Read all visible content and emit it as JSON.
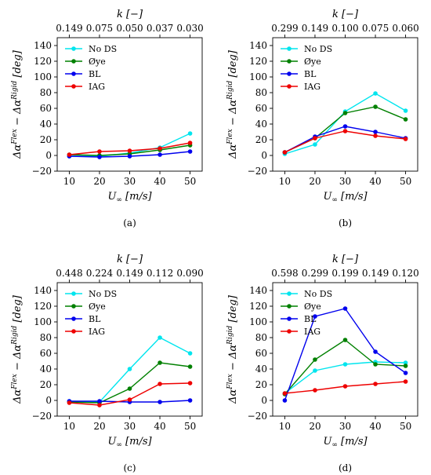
{
  "figure": {
    "series_colors": [
      "#00e5ee",
      "#008000",
      "#0000ee",
      "#ee0000"
    ],
    "x_label": "U∞ [m/s]",
    "y_label": "Δα^Flex − Δα^Rigid [deg]",
    "top_label": "k [−]"
  },
  "chart_data": [
    {
      "type": "line",
      "caption": "(a)",
      "x": [
        10,
        20,
        30,
        40,
        50
      ],
      "xlim": [
        6,
        54
      ],
      "ylim": [
        -20,
        150
      ],
      "yticks": [
        -20,
        0,
        20,
        40,
        60,
        80,
        100,
        120,
        140
      ],
      "top_ticks": [
        "0.149",
        "0.075",
        "0.050",
        "0.037",
        "0.030"
      ],
      "legend": "upper-left",
      "series": [
        {
          "name": "No DS",
          "values": [
            -1,
            -1,
            3,
            10,
            28
          ]
        },
        {
          "name": "Øye",
          "values": [
            1,
            0,
            2,
            7,
            13
          ]
        },
        {
          "name": "BL",
          "values": [
            -1,
            -2,
            -1,
            1,
            5
          ]
        },
        {
          "name": "IAG",
          "values": [
            1,
            5,
            6,
            9,
            16
          ]
        }
      ]
    },
    {
      "type": "line",
      "caption": "(b)",
      "x": [
        10,
        20,
        30,
        40,
        50
      ],
      "xlim": [
        6,
        54
      ],
      "ylim": [
        -20,
        150
      ],
      "yticks": [
        -20,
        0,
        20,
        40,
        60,
        80,
        100,
        120,
        140
      ],
      "top_ticks": [
        "0.299",
        "0.149",
        "0.100",
        "0.075",
        "0.060"
      ],
      "legend": "upper-left",
      "series": [
        {
          "name": "No DS",
          "values": [
            2,
            14,
            56,
            79,
            57
          ]
        },
        {
          "name": "Øye",
          "values": [
            4,
            22,
            54,
            62,
            46
          ]
        },
        {
          "name": "BL",
          "values": [
            4,
            24,
            37,
            30,
            22
          ]
        },
        {
          "name": "IAG",
          "values": [
            4,
            22,
            31,
            25,
            21
          ]
        }
      ]
    },
    {
      "type": "line",
      "caption": "(c)",
      "x": [
        10,
        20,
        30,
        40,
        50
      ],
      "xlim": [
        6,
        54
      ],
      "ylim": [
        -20,
        150
      ],
      "yticks": [
        -20,
        0,
        20,
        40,
        60,
        80,
        100,
        120,
        140
      ],
      "top_ticks": [
        "0.448",
        "0.224",
        "0.149",
        "0.112",
        "0.090"
      ],
      "legend": "upper-left",
      "series": [
        {
          "name": "No DS",
          "values": [
            -1,
            -2,
            40,
            80,
            60
          ]
        },
        {
          "name": "Øye",
          "values": [
            -2,
            -3,
            15,
            48,
            43
          ]
        },
        {
          "name": "BL",
          "values": [
            -1,
            -1,
            -2,
            -2,
            0
          ]
        },
        {
          "name": "IAG",
          "values": [
            -3,
            -6,
            1,
            21,
            22
          ]
        }
      ]
    },
    {
      "type": "line",
      "caption": "(d)",
      "x": [
        10,
        20,
        30,
        40,
        50
      ],
      "xlim": [
        6,
        54
      ],
      "ylim": [
        -20,
        150
      ],
      "yticks": [
        -20,
        0,
        20,
        40,
        60,
        80,
        100,
        120,
        140
      ],
      "top_ticks": [
        "0.598",
        "0.299",
        "0.199",
        "0.149",
        "0.120"
      ],
      "legend": "upper-left",
      "series": [
        {
          "name": "No DS",
          "values": [
            9,
            38,
            46,
            49,
            48
          ]
        },
        {
          "name": "Øye",
          "values": [
            8,
            52,
            77,
            46,
            44
          ]
        },
        {
          "name": "BL",
          "values": [
            0,
            107,
            117,
            62,
            35
          ]
        },
        {
          "name": "IAG",
          "values": [
            9,
            13,
            18,
            21,
            24
          ]
        }
      ]
    }
  ]
}
